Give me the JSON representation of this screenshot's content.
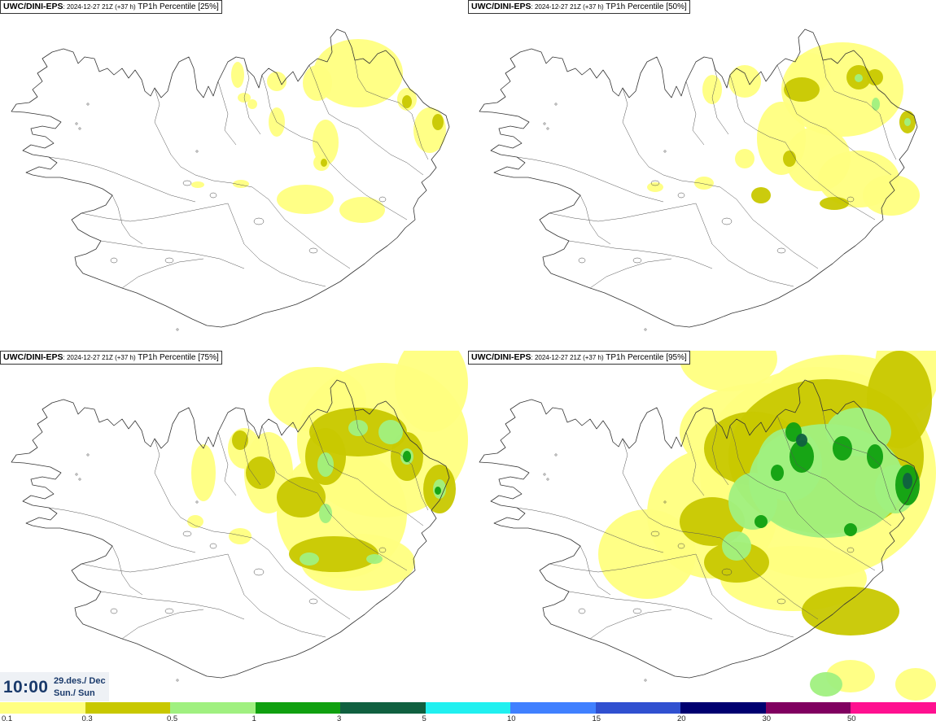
{
  "panels": [
    {
      "model": "UWC/DINI-EPS",
      "run": ": 2024-12-27 21Z (+37 h)",
      "label": " TP1h Percentile [25%]"
    },
    {
      "model": "UWC/DINI-EPS",
      "run": ": 2024-12-27 21Z (+37 h)",
      "label": " TP1h Percentile [50%]"
    },
    {
      "model": "UWC/DINI-EPS",
      "run": ": 2024-12-27 21Z (+37 h)",
      "label": " TP1h Percentile [75%]"
    },
    {
      "model": "UWC/DINI-EPS",
      "run": ": 2024-12-27 21Z (+37 h)",
      "label": " TP1h Percentile [95%]"
    }
  ],
  "time": {
    "clock": "10:00",
    "date_line1": "29.des./ Dec",
    "date_line2": "Sun./ Sun"
  },
  "legend": {
    "colors": [
      "#ffff80",
      "#c8c800",
      "#a0f080",
      "#10a010",
      "#106040",
      "#20f0f0",
      "#4080ff",
      "#3050d0",
      "#000070",
      "#800060",
      "#ff1090",
      "#ff0020"
    ],
    "ticks": [
      "0.1",
      "0.3",
      "0.5",
      "1",
      "3",
      "5",
      "10",
      "15",
      "20",
      "30",
      "50"
    ]
  }
}
